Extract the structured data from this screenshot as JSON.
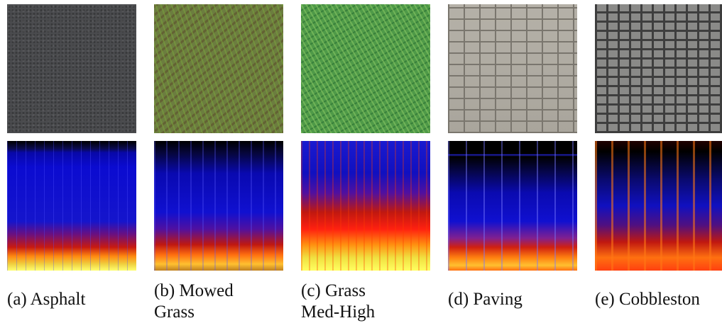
{
  "panels": [
    {
      "caption": "(a) Asphalt"
    },
    {
      "caption": "(b) Mowed Grass"
    },
    {
      "caption": "(c) Grass Med-High"
    },
    {
      "caption": "(d) Paving"
    },
    {
      "caption": "(e) Cobbleston"
    }
  ]
}
